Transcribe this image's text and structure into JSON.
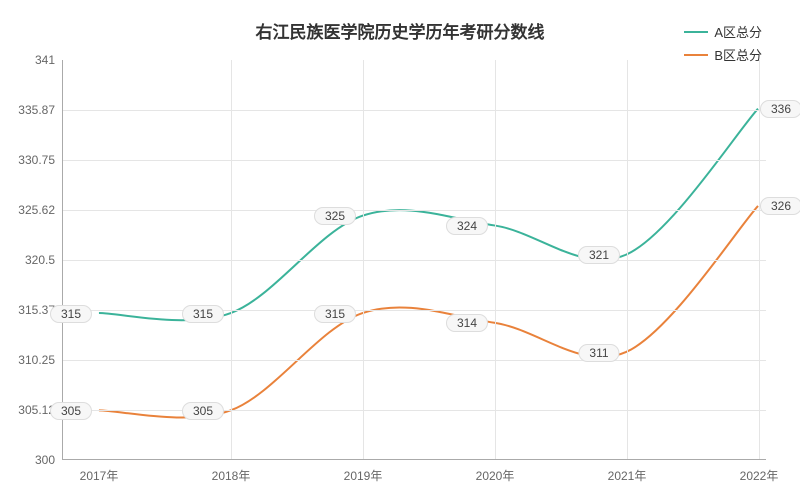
{
  "chart": {
    "type": "line",
    "title": "右江民族医学院历史学历年考研分数线",
    "title_fontsize": 17,
    "title_color": "#333333",
    "background_color": "#ffffff",
    "plot_background": "#ffffff",
    "grid_color": "#e5e5e5",
    "axis_color": "#aaaaaa",
    "label_color": "#666666",
    "label_fontsize": 12,
    "data_label_bg": "#f7f7f7",
    "data_label_border": "#dddddd",
    "x_categories": [
      "2017年",
      "2018年",
      "2019年",
      "2020年",
      "2021年",
      "2022年"
    ],
    "ylim": [
      300,
      341
    ],
    "y_ticks": [
      300,
      305.12,
      310.25,
      315.37,
      320.5,
      325.62,
      330.75,
      335.87,
      341
    ],
    "series": [
      {
        "name": "A区总分",
        "color": "#3bb39a",
        "values": [
          315,
          315,
          325,
          324,
          321,
          336
        ],
        "line_width": 2
      },
      {
        "name": "B区总分",
        "color": "#e9823b",
        "values": [
          305,
          305,
          315,
          314,
          311,
          326
        ],
        "line_width": 2
      }
    ],
    "line_style": "smooth"
  }
}
